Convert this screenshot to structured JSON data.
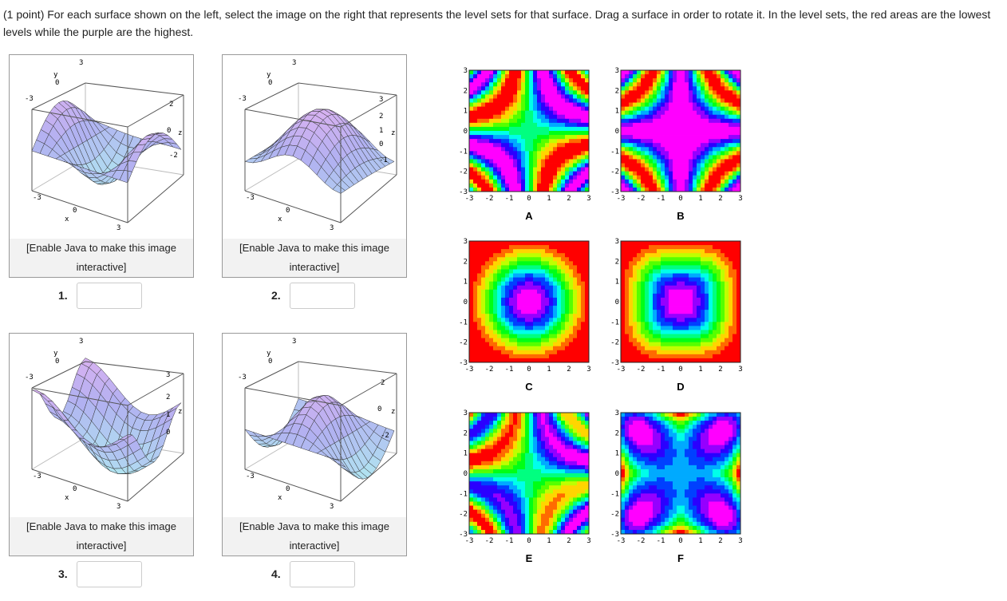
{
  "question": "(1 point) For each surface shown on the left, select the image on the right that represents the level sets for that surface. Drag a surface in order to rotate it. In the level sets, the red areas are the lowest levels while the purple are the highest.",
  "surfaces": [
    {
      "number": "1.",
      "caption": "[Enable Java to make this image interactive]",
      "labels": [
        "3",
        "y",
        "0",
        "-3",
        "-3",
        "0",
        "x",
        "3",
        "z"
      ],
      "z_ticks": [
        "2",
        "0",
        "-2"
      ]
    },
    {
      "number": "2.",
      "caption": "[Enable Java to make this image interactive]",
      "labels": [
        "3",
        "y",
        "0",
        "-3",
        "-3",
        "0",
        "x",
        "3",
        "z"
      ],
      "z_ticks": [
        "3",
        "2",
        "1",
        "0",
        "-1"
      ]
    },
    {
      "number": "3.",
      "caption": "[Enable Java to make this image interactive]",
      "labels": [
        "3",
        "y",
        "0",
        "-3",
        "-3",
        "0",
        "x",
        "3",
        "z"
      ],
      "z_ticks": [
        "3",
        "2",
        "1",
        "0"
      ]
    },
    {
      "number": "4.",
      "caption": "[Enable Java to make this image interactive]",
      "labels": [
        "3",
        "y",
        "0",
        "-3",
        "-3",
        "0",
        "x",
        "3",
        "z"
      ],
      "z_ticks": [
        "2",
        "0",
        "-2"
      ]
    }
  ],
  "contour_ticks": [
    "-3",
    "-2",
    "-1",
    "0",
    "1",
    "2",
    "3"
  ],
  "plots": [
    {
      "letter": "A"
    },
    {
      "letter": "B"
    },
    {
      "letter": "C"
    },
    {
      "letter": "D"
    },
    {
      "letter": "E"
    },
    {
      "letter": "F"
    }
  ]
}
